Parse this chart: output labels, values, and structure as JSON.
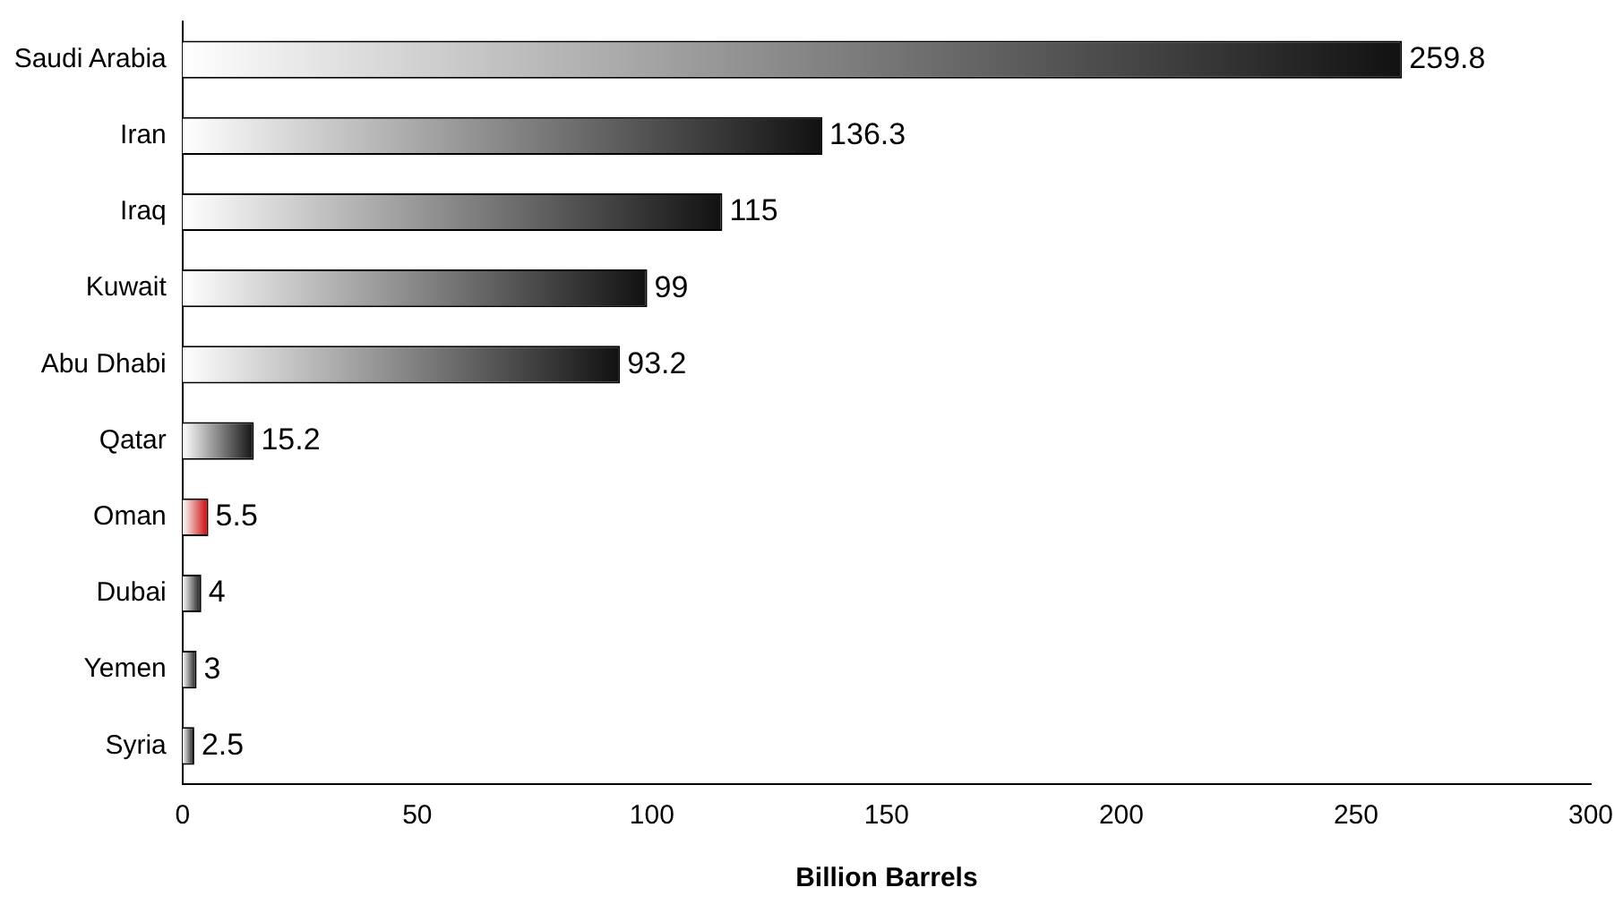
{
  "chart_data": {
    "type": "bar",
    "orientation": "horizontal",
    "xlabel": "Billion Barrels",
    "categories": [
      "Saudi Arabia",
      "Iran",
      "Iraq",
      "Kuwait",
      "Abu Dhabi",
      "Qatar",
      "Oman",
      "Dubai",
      "Yemen",
      "Syria"
    ],
    "values": [
      259.8,
      136.3,
      115,
      99,
      93.2,
      15.2,
      5.5,
      4,
      3,
      2.5
    ],
    "colors": [
      "#111111",
      "#111111",
      "#111111",
      "#111111",
      "#111111",
      "#111111",
      "#cc0000",
      "#111111",
      "#111111",
      "#111111"
    ],
    "xlim": [
      0,
      300
    ],
    "xticks": [
      0,
      50,
      100,
      150,
      200,
      250,
      300
    ],
    "grid": false,
    "legend": false,
    "data_labels": true
  }
}
